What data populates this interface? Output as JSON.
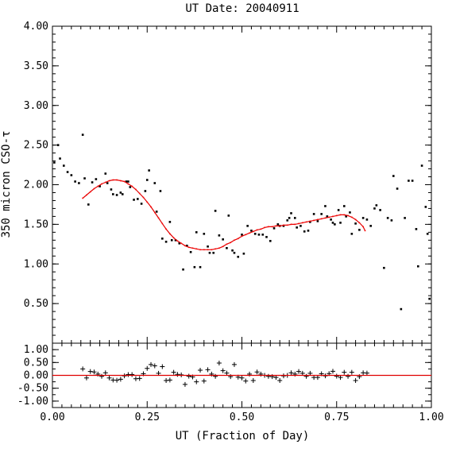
{
  "chart_data": [
    {
      "type": "scatter",
      "title": "UT Date: 20040911",
      "xlabel": "",
      "ylabel": "350 micron CSO-τ",
      "xlim": [
        0,
        1
      ],
      "ylim": [
        0,
        4
      ],
      "yticks": [
        "0.50",
        "1.00",
        "1.50",
        "2.00",
        "2.50",
        "3.00",
        "3.50",
        "4.00"
      ],
      "grid": false,
      "series": [
        {
          "marker": "dot",
          "color": "#000000",
          "points": [
            [
              0.005,
              2.28
            ],
            [
              0.015,
              2.5
            ],
            [
              0.02,
              2.33
            ],
            [
              0.03,
              2.24
            ],
            [
              0.04,
              2.16
            ],
            [
              0.05,
              2.12
            ],
            [
              0.06,
              2.04
            ],
            [
              0.07,
              2.02
            ],
            [
              0.08,
              2.63
            ],
            [
              0.085,
              2.08
            ],
            [
              0.095,
              1.75
            ],
            [
              0.105,
              2.03
            ],
            [
              0.115,
              2.07
            ],
            [
              0.125,
              1.98
            ],
            [
              0.14,
              2.14
            ],
            [
              0.145,
              2.02
            ],
            [
              0.155,
              1.94
            ],
            [
              0.16,
              1.88
            ],
            [
              0.17,
              1.87
            ],
            [
              0.18,
              1.9
            ],
            [
              0.185,
              1.88
            ],
            [
              0.195,
              2.04
            ],
            [
              0.2,
              2.04
            ],
            [
              0.205,
              1.97
            ],
            [
              0.215,
              1.81
            ],
            [
              0.225,
              1.82
            ],
            [
              0.235,
              1.76
            ],
            [
              0.245,
              1.92
            ],
            [
              0.25,
              2.06
            ],
            [
              0.255,
              2.18
            ],
            [
              0.27,
              2.02
            ],
            [
              0.275,
              1.66
            ],
            [
              0.285,
              1.92
            ],
            [
              0.29,
              1.32
            ],
            [
              0.3,
              1.28
            ],
            [
              0.31,
              1.53
            ],
            [
              0.315,
              1.3
            ],
            [
              0.325,
              1.3
            ],
            [
              0.335,
              1.26
            ],
            [
              0.345,
              0.93
            ],
            [
              0.355,
              1.23
            ],
            [
              0.365,
              1.15
            ],
            [
              0.375,
              0.96
            ],
            [
              0.38,
              1.4
            ],
            [
              0.39,
              0.96
            ],
            [
              0.4,
              1.38
            ],
            [
              0.41,
              1.22
            ],
            [
              0.415,
              1.14
            ],
            [
              0.425,
              1.14
            ],
            [
              0.43,
              1.67
            ],
            [
              0.44,
              1.36
            ],
            [
              0.45,
              1.31
            ],
            [
              0.46,
              1.2
            ],
            [
              0.465,
              1.61
            ],
            [
              0.475,
              1.17
            ],
            [
              0.48,
              1.14
            ],
            [
              0.49,
              1.09
            ],
            [
              0.5,
              1.37
            ],
            [
              0.505,
              1.13
            ],
            [
              0.515,
              1.48
            ],
            [
              0.525,
              1.42
            ],
            [
              0.535,
              1.38
            ],
            [
              0.545,
              1.37
            ],
            [
              0.555,
              1.37
            ],
            [
              0.565,
              1.34
            ],
            [
              0.575,
              1.29
            ],
            [
              0.585,
              1.45
            ],
            [
              0.595,
              1.5
            ],
            [
              0.6,
              1.48
            ],
            [
              0.61,
              1.48
            ],
            [
              0.62,
              1.55
            ],
            [
              0.625,
              1.58
            ],
            [
              0.63,
              1.64
            ],
            [
              0.64,
              1.58
            ],
            [
              0.645,
              1.46
            ],
            [
              0.655,
              1.48
            ],
            [
              0.665,
              1.41
            ],
            [
              0.675,
              1.42
            ],
            [
              0.68,
              1.53
            ],
            [
              0.69,
              1.63
            ],
            [
              0.7,
              1.54
            ],
            [
              0.71,
              1.63
            ],
            [
              0.72,
              1.73
            ],
            [
              0.725,
              1.6
            ],
            [
              0.735,
              1.56
            ],
            [
              0.74,
              1.52
            ],
            [
              0.745,
              1.5
            ],
            [
              0.755,
              1.68
            ],
            [
              0.76,
              1.52
            ],
            [
              0.77,
              1.73
            ],
            [
              0.775,
              1.6
            ],
            [
              0.785,
              1.65
            ],
            [
              0.79,
              1.38
            ],
            [
              0.8,
              1.51
            ],
            [
              0.81,
              1.43
            ],
            [
              0.82,
              1.58
            ],
            [
              0.83,
              1.56
            ],
            [
              0.84,
              1.48
            ],
            [
              0.85,
              1.7
            ],
            [
              0.855,
              1.74
            ],
            [
              0.865,
              1.68
            ],
            [
              0.875,
              0.95
            ],
            [
              0.885,
              1.58
            ],
            [
              0.895,
              1.55
            ],
            [
              0.9,
              2.11
            ],
            [
              0.91,
              1.95
            ],
            [
              0.92,
              0.43
            ],
            [
              0.93,
              1.58
            ],
            [
              0.94,
              2.05
            ],
            [
              0.95,
              2.05
            ],
            [
              0.96,
              1.44
            ],
            [
              0.965,
              0.97
            ],
            [
              0.975,
              2.24
            ],
            [
              0.985,
              1.72
            ],
            [
              0.99,
              1.38
            ],
            [
              0.995,
              0.56
            ]
          ]
        },
        {
          "marker": "line",
          "color": "#e00000",
          "points": [
            [
              0.08,
              1.83
            ],
            [
              0.09,
              1.87
            ],
            [
              0.1,
              1.91
            ],
            [
              0.11,
              1.95
            ],
            [
              0.12,
              1.98
            ],
            [
              0.13,
              2.01
            ],
            [
              0.14,
              2.03
            ],
            [
              0.15,
              2.05
            ],
            [
              0.16,
              2.06
            ],
            [
              0.17,
              2.06
            ],
            [
              0.18,
              2.05
            ],
            [
              0.19,
              2.04
            ],
            [
              0.2,
              2.01
            ],
            [
              0.21,
              1.98
            ],
            [
              0.22,
              1.94
            ],
            [
              0.23,
              1.89
            ],
            [
              0.24,
              1.84
            ],
            [
              0.25,
              1.78
            ],
            [
              0.26,
              1.72
            ],
            [
              0.27,
              1.65
            ],
            [
              0.28,
              1.58
            ],
            [
              0.29,
              1.51
            ],
            [
              0.3,
              1.44
            ],
            [
              0.31,
              1.38
            ],
            [
              0.32,
              1.33
            ],
            [
              0.33,
              1.29
            ],
            [
              0.34,
              1.26
            ],
            [
              0.35,
              1.23
            ],
            [
              0.36,
              1.21
            ],
            [
              0.37,
              1.2
            ],
            [
              0.38,
              1.19
            ],
            [
              0.39,
              1.18
            ],
            [
              0.4,
              1.18
            ],
            [
              0.41,
              1.18
            ],
            [
              0.42,
              1.18
            ],
            [
              0.43,
              1.19
            ],
            [
              0.44,
              1.2
            ],
            [
              0.45,
              1.22
            ],
            [
              0.46,
              1.25
            ],
            [
              0.47,
              1.27
            ],
            [
              0.48,
              1.3
            ],
            [
              0.49,
              1.32
            ],
            [
              0.5,
              1.35
            ],
            [
              0.51,
              1.37
            ],
            [
              0.52,
              1.39
            ],
            [
              0.53,
              1.41
            ],
            [
              0.54,
              1.43
            ],
            [
              0.55,
              1.44
            ],
            [
              0.56,
              1.46
            ],
            [
              0.57,
              1.47
            ],
            [
              0.58,
              1.47
            ],
            [
              0.59,
              1.48
            ],
            [
              0.6,
              1.48
            ],
            [
              0.61,
              1.49
            ],
            [
              0.62,
              1.49
            ],
            [
              0.63,
              1.5
            ],
            [
              0.64,
              1.5
            ],
            [
              0.65,
              1.51
            ],
            [
              0.66,
              1.52
            ],
            [
              0.67,
              1.53
            ],
            [
              0.68,
              1.54
            ],
            [
              0.69,
              1.55
            ],
            [
              0.7,
              1.56
            ],
            [
              0.71,
              1.57
            ],
            [
              0.72,
              1.58
            ],
            [
              0.73,
              1.59
            ],
            [
              0.74,
              1.6
            ],
            [
              0.75,
              1.61
            ],
            [
              0.76,
              1.62
            ],
            [
              0.77,
              1.62
            ],
            [
              0.78,
              1.61
            ],
            [
              0.79,
              1.59
            ],
            [
              0.8,
              1.56
            ],
            [
              0.81,
              1.52
            ],
            [
              0.82,
              1.47
            ],
            [
              0.825,
              1.42
            ]
          ]
        }
      ]
    },
    {
      "type": "scatter",
      "title": "",
      "xlabel": "UT (Fraction of Day)",
      "ylabel": "",
      "xlim": [
        0,
        1
      ],
      "ylim": [
        -1.25,
        1.25
      ],
      "xticks": [
        "0.00",
        "0.25",
        "0.50",
        "0.75",
        "1.00"
      ],
      "yticks": [
        "-1.00",
        "-0.50",
        "0.00",
        "0.50",
        "1.00"
      ],
      "grid": false,
      "series": [
        {
          "marker": "plus",
          "color": "#000000",
          "points": [
            [
              0.08,
              0.25
            ],
            [
              0.09,
              -0.1
            ],
            [
              0.1,
              0.15
            ],
            [
              0.11,
              0.13
            ],
            [
              0.12,
              0.05
            ],
            [
              0.13,
              -0.04
            ],
            [
              0.14,
              0.1
            ],
            [
              0.15,
              -0.1
            ],
            [
              0.16,
              -0.18
            ],
            [
              0.17,
              -0.19
            ],
            [
              0.18,
              -0.15
            ],
            [
              0.19,
              -0.02
            ],
            [
              0.2,
              0.03
            ],
            [
              0.21,
              0.03
            ],
            [
              0.22,
              -0.13
            ],
            [
              0.23,
              -0.12
            ],
            [
              0.24,
              0.06
            ],
            [
              0.25,
              0.27
            ],
            [
              0.26,
              0.42
            ],
            [
              0.27,
              0.37
            ],
            [
              0.28,
              0.08
            ],
            [
              0.29,
              0.34
            ],
            [
              0.3,
              -0.2
            ],
            [
              0.31,
              -0.18
            ],
            [
              0.32,
              0.12
            ],
            [
              0.33,
              0.04
            ],
            [
              0.34,
              0.02
            ],
            [
              0.35,
              -0.35
            ],
            [
              0.36,
              -0.03
            ],
            [
              0.37,
              -0.06
            ],
            [
              0.38,
              -0.25
            ],
            [
              0.39,
              0.2
            ],
            [
              0.4,
              -0.22
            ],
            [
              0.41,
              0.22
            ],
            [
              0.42,
              0.05
            ],
            [
              0.43,
              -0.04
            ],
            [
              0.44,
              0.48
            ],
            [
              0.45,
              0.18
            ],
            [
              0.46,
              0.09
            ],
            [
              0.47,
              -0.05
            ],
            [
              0.48,
              0.42
            ],
            [
              0.49,
              -0.07
            ],
            [
              0.5,
              -0.1
            ],
            [
              0.51,
              -0.22
            ],
            [
              0.52,
              0.05
            ],
            [
              0.53,
              -0.2
            ],
            [
              0.54,
              0.13
            ],
            [
              0.55,
              0.05
            ],
            [
              0.56,
              0.0
            ],
            [
              0.57,
              -0.04
            ],
            [
              0.58,
              -0.05
            ],
            [
              0.59,
              -0.08
            ],
            [
              0.6,
              -0.2
            ],
            [
              0.61,
              -0.02
            ],
            [
              0.62,
              0.0
            ],
            [
              0.63,
              0.1
            ],
            [
              0.64,
              0.05
            ],
            [
              0.65,
              0.15
            ],
            [
              0.66,
              0.08
            ],
            [
              0.67,
              -0.04
            ],
            [
              0.68,
              0.08
            ],
            [
              0.69,
              -0.08
            ],
            [
              0.7,
              -0.08
            ],
            [
              0.71,
              0.06
            ],
            [
              0.72,
              -0.02
            ],
            [
              0.73,
              0.07
            ],
            [
              0.74,
              0.16
            ],
            [
              0.75,
              -0.03
            ],
            [
              0.76,
              -0.08
            ],
            [
              0.77,
              0.12
            ],
            [
              0.78,
              -0.04
            ],
            [
              0.79,
              0.12
            ],
            [
              0.8,
              -0.2
            ],
            [
              0.81,
              -0.05
            ],
            [
              0.82,
              0.1
            ],
            [
              0.83,
              0.09
            ]
          ]
        },
        {
          "marker": "line",
          "color": "#e00000",
          "points": [
            [
              0,
              0
            ],
            [
              1,
              0
            ]
          ]
        }
      ]
    }
  ]
}
